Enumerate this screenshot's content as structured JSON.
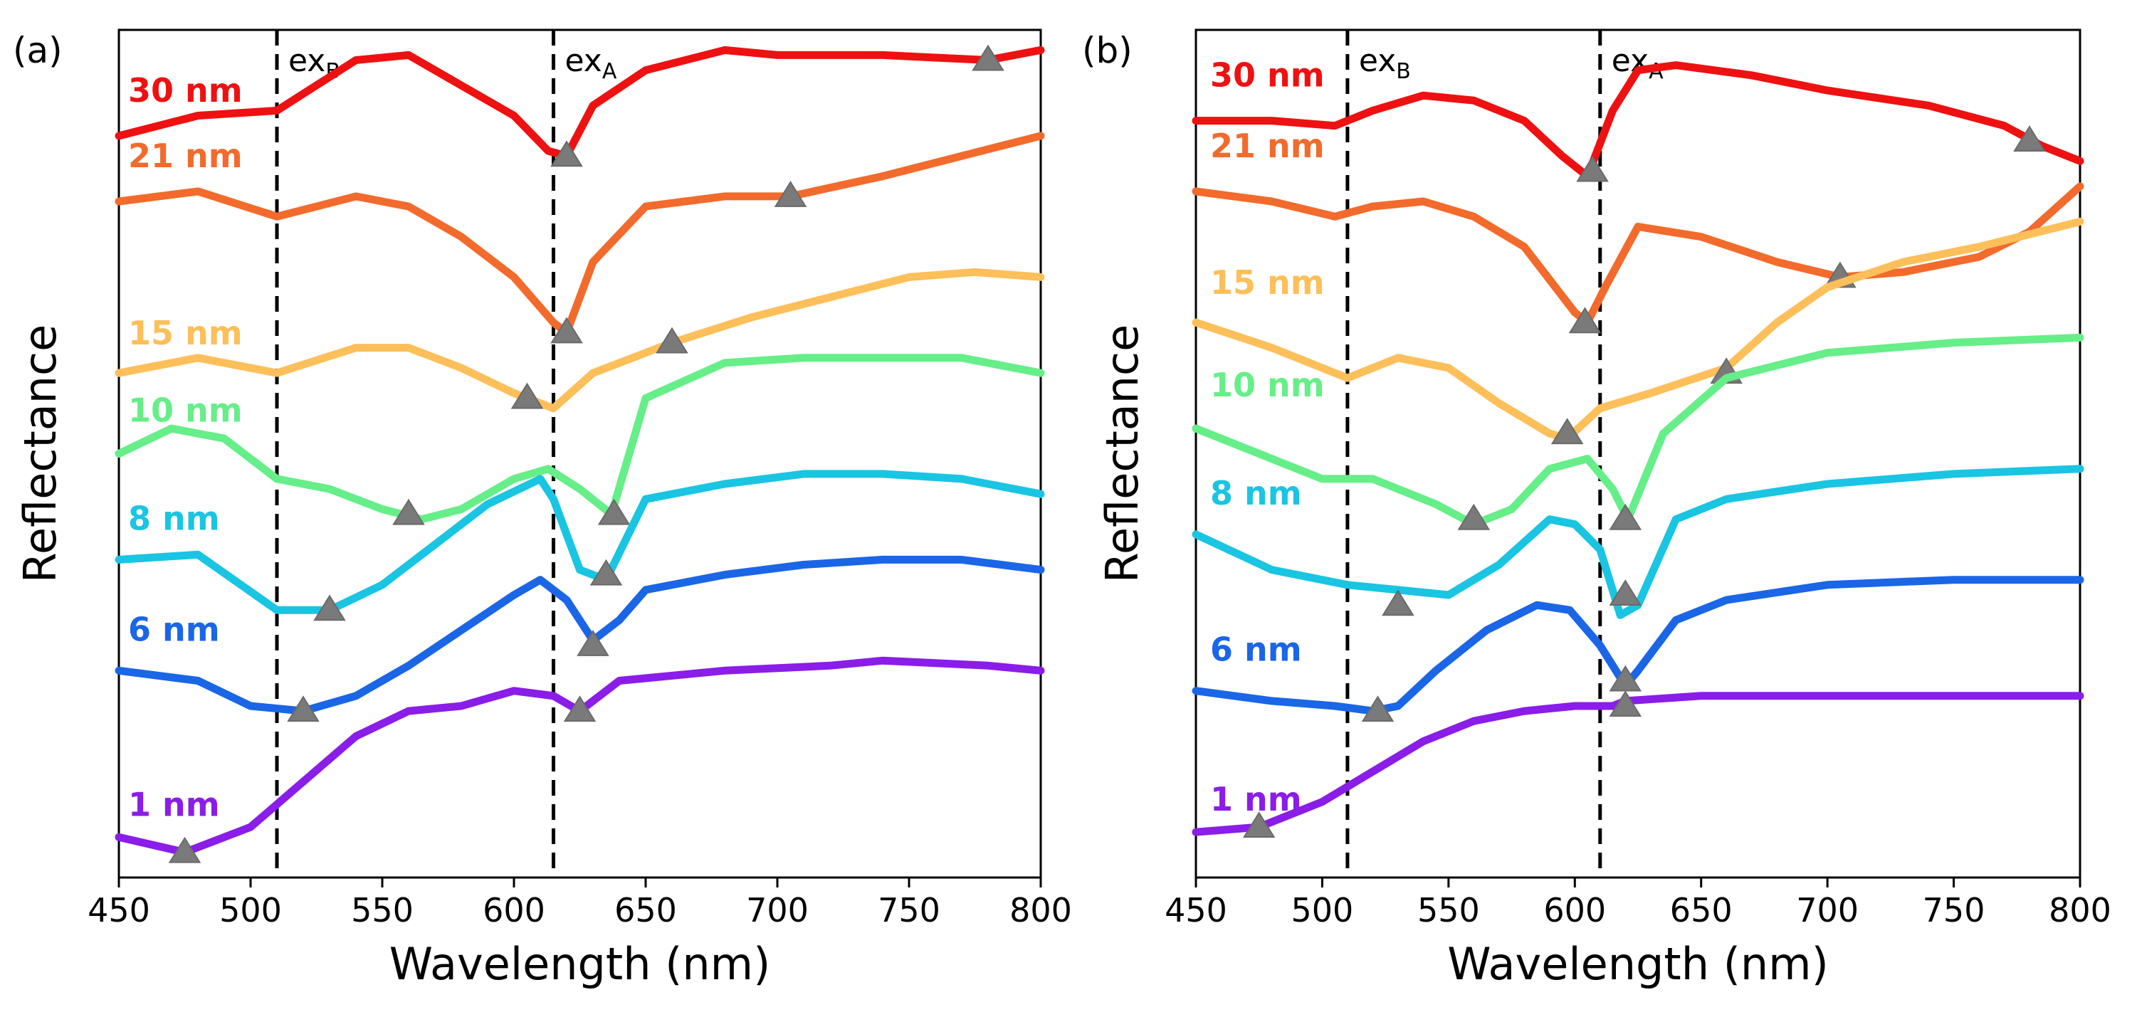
{
  "chart_data": [
    {
      "type": "line",
      "panel": "(a)",
      "xlabel": "Wavelength (nm)",
      "ylabel": "Reflectance",
      "xlim": [
        450,
        800
      ],
      "ylim": [
        -0.2,
        8.2
      ],
      "x_ticks": [
        "450",
        "500",
        "550",
        "600",
        "650",
        "700",
        "750",
        "800"
      ],
      "y_ticks": [],
      "ex_lines": [
        {
          "base": "ex",
          "sub": "B",
          "x": 510
        },
        {
          "base": "ex",
          "sub": "A",
          "x": 615
        }
      ],
      "series": [
        {
          "name": "30 nm",
          "color": "#ee1111",
          "x": [
            450,
            480,
            510,
            540,
            560,
            580,
            600,
            613,
            620,
            630,
            650,
            680,
            700,
            740,
            780,
            800
          ],
          "y": [
            7.15,
            7.35,
            7.4,
            7.9,
            7.95,
            7.65,
            7.35,
            7.0,
            6.95,
            7.45,
            7.8,
            8.0,
            7.95,
            7.95,
            7.9,
            8.0
          ],
          "markers": [
            {
              "x": 620,
              "y": 6.95
            },
            {
              "x": 780,
              "y": 7.9
            }
          ]
        },
        {
          "name": "21 nm",
          "color": "#f26b2c",
          "x": [
            450,
            480,
            510,
            540,
            560,
            580,
            600,
            615,
            620,
            630,
            650,
            680,
            705,
            740,
            770,
            800
          ],
          "y": [
            6.5,
            6.6,
            6.35,
            6.55,
            6.45,
            6.15,
            5.75,
            5.3,
            5.2,
            5.9,
            6.45,
            6.55,
            6.55,
            6.75,
            6.95,
            7.15
          ],
          "markers": [
            {
              "x": 620,
              "y": 5.2
            },
            {
              "x": 705,
              "y": 6.55
            }
          ]
        },
        {
          "name": "15 nm",
          "color": "#fdbf5a",
          "x": [
            450,
            480,
            510,
            540,
            560,
            580,
            600,
            615,
            630,
            660,
            690,
            720,
            750,
            775,
            800
          ],
          "y": [
            4.8,
            4.95,
            4.8,
            5.05,
            5.05,
            4.85,
            4.6,
            4.45,
            4.8,
            5.1,
            5.35,
            5.55,
            5.75,
            5.8,
            5.75
          ],
          "markers": [
            {
              "x": 605,
              "y": 4.55
            },
            {
              "x": 660,
              "y": 5.1
            }
          ]
        },
        {
          "name": "10 nm",
          "color": "#66ee88",
          "x": [
            450,
            470,
            490,
            510,
            530,
            550,
            565,
            580,
            600,
            613,
            625,
            637,
            650,
            680,
            710,
            740,
            770,
            800
          ],
          "y": [
            4.0,
            4.25,
            4.15,
            3.75,
            3.65,
            3.45,
            3.35,
            3.45,
            3.75,
            3.85,
            3.65,
            3.4,
            4.55,
            4.9,
            4.95,
            4.95,
            4.95,
            4.8
          ],
          "markers": [
            {
              "x": 560,
              "y": 3.4
            },
            {
              "x": 638,
              "y": 3.4
            }
          ]
        },
        {
          "name": "8 nm",
          "color": "#19c5e2",
          "x": [
            450,
            480,
            510,
            530,
            550,
            570,
            590,
            610,
            615,
            625,
            635,
            650,
            680,
            710,
            740,
            770,
            800
          ],
          "y": [
            2.95,
            3.0,
            2.45,
            2.45,
            2.7,
            3.1,
            3.5,
            3.75,
            3.55,
            2.85,
            2.75,
            3.55,
            3.7,
            3.8,
            3.8,
            3.75,
            3.6
          ],
          "markers": [
            {
              "x": 530,
              "y": 2.45
            },
            {
              "x": 635,
              "y": 2.8
            }
          ]
        },
        {
          "name": "6 nm",
          "color": "#1a66e6",
          "x": [
            450,
            480,
            500,
            520,
            540,
            560,
            580,
            600,
            610,
            620,
            630,
            640,
            650,
            680,
            710,
            740,
            770,
            800
          ],
          "y": [
            1.85,
            1.75,
            1.5,
            1.45,
            1.6,
            1.9,
            2.25,
            2.6,
            2.75,
            2.55,
            2.15,
            2.35,
            2.65,
            2.8,
            2.9,
            2.95,
            2.95,
            2.85
          ],
          "markers": [
            {
              "x": 520,
              "y": 1.45
            },
            {
              "x": 630,
              "y": 2.1
            }
          ]
        },
        {
          "name": "1 nm",
          "color": "#8a1de8",
          "x": [
            450,
            475,
            500,
            520,
            540,
            560,
            580,
            600,
            615,
            625,
            640,
            680,
            720,
            740,
            780,
            800
          ],
          "y": [
            0.2,
            0.05,
            0.3,
            0.75,
            1.2,
            1.45,
            1.5,
            1.65,
            1.6,
            1.45,
            1.75,
            1.85,
            1.9,
            1.95,
            1.9,
            1.85
          ],
          "markers": [
            {
              "x": 475,
              "y": 0.05
            },
            {
              "x": 625,
              "y": 1.45
            }
          ]
        }
      ]
    },
    {
      "type": "line",
      "panel": "(b)",
      "xlabel": "Wavelength (nm)",
      "ylabel": "Reflectance",
      "xlim": [
        450,
        800
      ],
      "ylim": [
        -0.2,
        8.2
      ],
      "x_ticks": [
        "450",
        "500",
        "550",
        "600",
        "650",
        "700",
        "750",
        "800"
      ],
      "y_ticks": [],
      "ex_lines": [
        {
          "base": "ex",
          "sub": "B",
          "x": 510
        },
        {
          "base": "ex",
          "sub": "A",
          "x": 610
        }
      ],
      "series": [
        {
          "name": "30 nm",
          "color": "#ee1111",
          "x": [
            450,
            480,
            505,
            520,
            540,
            560,
            580,
            595,
            605,
            615,
            625,
            640,
            670,
            700,
            740,
            770,
            785,
            800
          ],
          "y": [
            7.3,
            7.3,
            7.25,
            7.4,
            7.55,
            7.5,
            7.3,
            6.95,
            6.75,
            7.4,
            7.8,
            7.85,
            7.75,
            7.6,
            7.45,
            7.25,
            7.05,
            6.9
          ],
          "markers": [
            {
              "x": 607,
              "y": 6.8
            },
            {
              "x": 780,
              "y": 7.1
            }
          ]
        },
        {
          "name": "21 nm",
          "color": "#f26b2c",
          "x": [
            450,
            480,
            505,
            520,
            540,
            560,
            580,
            600,
            605,
            612,
            625,
            650,
            680,
            705,
            730,
            760,
            780,
            800
          ],
          "y": [
            6.6,
            6.5,
            6.35,
            6.45,
            6.5,
            6.35,
            6.05,
            5.4,
            5.3,
            5.65,
            6.25,
            6.15,
            5.9,
            5.75,
            5.8,
            5.95,
            6.2,
            6.65
          ],
          "markers": [
            {
              "x": 604,
              "y": 5.3
            },
            {
              "x": 705,
              "y": 5.75
            }
          ]
        },
        {
          "name": "15 nm",
          "color": "#fdbf5a",
          "x": [
            450,
            480,
            510,
            530,
            550,
            570,
            590,
            597,
            610,
            630,
            660,
            680,
            700,
            730,
            760,
            800
          ],
          "y": [
            5.3,
            5.05,
            4.75,
            4.95,
            4.85,
            4.5,
            4.2,
            4.15,
            4.45,
            4.6,
            4.85,
            5.3,
            5.65,
            5.9,
            6.05,
            6.3
          ],
          "markers": [
            {
              "x": 597,
              "y": 4.2
            },
            {
              "x": 660,
              "y": 4.8
            }
          ]
        },
        {
          "name": "10 nm",
          "color": "#66ee88",
          "x": [
            450,
            480,
            500,
            520,
            545,
            560,
            575,
            590,
            605,
            615,
            621,
            635,
            660,
            700,
            750,
            800
          ],
          "y": [
            4.25,
            3.95,
            3.75,
            3.75,
            3.5,
            3.3,
            3.45,
            3.85,
            3.95,
            3.65,
            3.35,
            4.2,
            4.75,
            5.0,
            5.1,
            5.15
          ],
          "markers": [
            {
              "x": 560,
              "y": 3.35
            },
            {
              "x": 620,
              "y": 3.35
            }
          ]
        },
        {
          "name": "8 nm",
          "color": "#19c5e2",
          "x": [
            450,
            480,
            510,
            530,
            550,
            570,
            590,
            600,
            610,
            618,
            625,
            640,
            660,
            700,
            750,
            800
          ],
          "y": [
            3.2,
            2.85,
            2.7,
            2.65,
            2.6,
            2.9,
            3.35,
            3.3,
            3.05,
            2.4,
            2.5,
            3.35,
            3.55,
            3.7,
            3.8,
            3.85
          ],
          "markers": [
            {
              "x": 530,
              "y": 2.5
            },
            {
              "x": 620,
              "y": 2.6
            }
          ]
        },
        {
          "name": "6 nm",
          "color": "#1a66e6",
          "x": [
            450,
            480,
            505,
            520,
            530,
            545,
            565,
            585,
            598,
            610,
            620,
            625,
            640,
            660,
            700,
            750,
            800
          ],
          "y": [
            1.65,
            1.55,
            1.5,
            1.45,
            1.5,
            1.85,
            2.25,
            2.5,
            2.45,
            2.1,
            1.7,
            1.85,
            2.35,
            2.55,
            2.7,
            2.75,
            2.75
          ],
          "markers": [
            {
              "x": 522,
              "y": 1.45
            },
            {
              "x": 620,
              "y": 1.75
            }
          ]
        },
        {
          "name": "1 nm",
          "color": "#8a1de8",
          "x": [
            450,
            475,
            500,
            520,
            540,
            560,
            580,
            600,
            615,
            620,
            650,
            700,
            750,
            800
          ],
          "y": [
            0.25,
            0.3,
            0.55,
            0.85,
            1.15,
            1.35,
            1.45,
            1.5,
            1.5,
            1.55,
            1.6,
            1.6,
            1.6,
            1.6
          ],
          "markers": [
            {
              "x": 475,
              "y": 0.3
            },
            {
              "x": 620,
              "y": 1.5
            }
          ]
        }
      ]
    }
  ]
}
